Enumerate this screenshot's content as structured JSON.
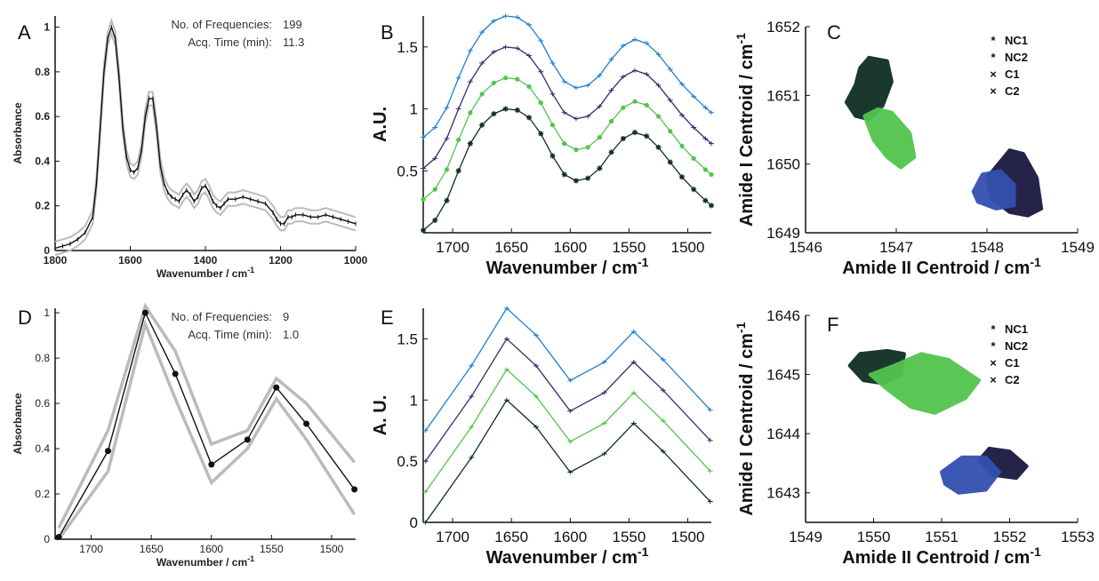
{
  "chart_data": [
    {
      "panel_label": "A",
      "type": "line",
      "xlabel": "Wavenumber / cm",
      "ylabel": "Absorbance",
      "x_exponent": "-1",
      "xlim": [
        1800,
        1000
      ],
      "ylim": [
        0,
        1.05
      ],
      "xticks": [
        "1800",
        "1600",
        "1400",
        "1200",
        "1000"
      ],
      "yticks": [
        "0",
        "0.2",
        "0.4",
        "0.6",
        "0.8",
        "1"
      ],
      "annotation": [
        {
          "label": "No. of Frequencies:",
          "value": "199"
        },
        {
          "label": "Acq. Time (min):",
          "value": "11.3"
        }
      ],
      "series": [
        {
          "color": "#111111",
          "band_color": "#bbbbbb",
          "x": [
            1800,
            1780,
            1760,
            1740,
            1720,
            1700,
            1690,
            1680,
            1670,
            1660,
            1650,
            1640,
            1630,
            1620,
            1610,
            1600,
            1590,
            1580,
            1570,
            1560,
            1550,
            1540,
            1530,
            1520,
            1510,
            1500,
            1490,
            1480,
            1470,
            1460,
            1450,
            1440,
            1430,
            1420,
            1410,
            1400,
            1390,
            1380,
            1370,
            1360,
            1350,
            1340,
            1320,
            1300,
            1280,
            1260,
            1240,
            1220,
            1210,
            1200,
            1190,
            1180,
            1170,
            1160,
            1140,
            1120,
            1100,
            1080,
            1060,
            1040,
            1020,
            1000
          ],
          "y": [
            0.01,
            0.02,
            0.03,
            0.05,
            0.08,
            0.15,
            0.3,
            0.55,
            0.8,
            0.95,
            1.0,
            0.95,
            0.78,
            0.55,
            0.42,
            0.36,
            0.35,
            0.37,
            0.45,
            0.6,
            0.68,
            0.68,
            0.55,
            0.38,
            0.3,
            0.26,
            0.24,
            0.23,
            0.22,
            0.25,
            0.27,
            0.25,
            0.22,
            0.24,
            0.28,
            0.29,
            0.26,
            0.22,
            0.2,
            0.19,
            0.21,
            0.23,
            0.23,
            0.24,
            0.23,
            0.22,
            0.21,
            0.17,
            0.14,
            0.12,
            0.12,
            0.15,
            0.15,
            0.16,
            0.16,
            0.15,
            0.15,
            0.16,
            0.15,
            0.14,
            0.13,
            0.12
          ],
          "band": 0.03
        }
      ]
    },
    {
      "panel_label": "B",
      "type": "line",
      "xlabel": "Wavenumber / cm",
      "ylabel": "A.U.",
      "x_exponent": "-1",
      "xlim": [
        1725,
        1480
      ],
      "ylim": [
        0,
        1.75
      ],
      "xticks": [
        "1700",
        "1650",
        "1600",
        "1550",
        "1500"
      ],
      "yticks": [
        "0.5",
        "1",
        "1.5"
      ],
      "x": [
        1725,
        1715,
        1705,
        1695,
        1685,
        1675,
        1665,
        1655,
        1645,
        1635,
        1625,
        1615,
        1605,
        1595,
        1585,
        1575,
        1565,
        1555,
        1545,
        1535,
        1525,
        1515,
        1505,
        1495,
        1485,
        1480
      ],
      "base": [
        0.02,
        0.1,
        0.26,
        0.5,
        0.72,
        0.87,
        0.96,
        1.0,
        0.99,
        0.93,
        0.8,
        0.62,
        0.47,
        0.42,
        0.44,
        0.52,
        0.65,
        0.76,
        0.81,
        0.78,
        0.69,
        0.57,
        0.45,
        0.35,
        0.26,
        0.22
      ],
      "series": [
        {
          "color": "#0f2e22",
          "offset": 0,
          "marker": "star"
        },
        {
          "color": "#52c44e",
          "offset": 0.25,
          "marker": "dot"
        },
        {
          "color": "#352d6f",
          "offset": 0.5,
          "marker": "tick"
        },
        {
          "color": "#1f7fce",
          "offset": 0.75,
          "marker": "tick"
        }
      ]
    },
    {
      "panel_label": "C",
      "type": "scatter",
      "xlabel": "Amide II Centroid / cm",
      "ylabel": "Amide I Centroid / cm",
      "exponent": "-1",
      "xlim": [
        1546,
        1549
      ],
      "ylim": [
        1649,
        1652
      ],
      "xticks": [
        "1546",
        "1547",
        "1548",
        "1549"
      ],
      "yticks": [
        "1649",
        "1650",
        "1651",
        "1652"
      ],
      "legend_position": "top-right",
      "legend": [
        {
          "label": "NC1",
          "color": "#0f2e22",
          "marker": "*"
        },
        {
          "label": "NC2",
          "color": "#52c44e",
          "marker": "*"
        },
        {
          "label": "C1",
          "color": "#1a1840",
          "marker": "×"
        },
        {
          "label": "C2",
          "color": "#3350b0",
          "marker": "×"
        }
      ],
      "clusters": [
        {
          "name": "NC1",
          "color": "#0f2e22",
          "polygon": [
            [
              1546.55,
              1651.15
            ],
            [
              1546.6,
              1651.4
            ],
            [
              1546.7,
              1651.55
            ],
            [
              1546.9,
              1651.5
            ],
            [
              1546.95,
              1651.2
            ],
            [
              1546.85,
              1650.85
            ],
            [
              1546.7,
              1650.65
            ],
            [
              1546.55,
              1650.7
            ],
            [
              1546.45,
              1650.9
            ]
          ]
        },
        {
          "name": "NC2",
          "color": "#52c44e",
          "polygon": [
            [
              1546.65,
              1650.7
            ],
            [
              1546.8,
              1650.8
            ],
            [
              1546.95,
              1650.75
            ],
            [
              1547.15,
              1650.45
            ],
            [
              1547.2,
              1650.1
            ],
            [
              1547.05,
              1649.95
            ],
            [
              1546.9,
              1650.1
            ],
            [
              1546.75,
              1650.35
            ]
          ]
        },
        {
          "name": "C1",
          "color": "#1a1840",
          "polygon": [
            [
              1548.0,
              1649.8
            ],
            [
              1548.25,
              1650.2
            ],
            [
              1548.4,
              1650.15
            ],
            [
              1548.55,
              1649.8
            ],
            [
              1548.6,
              1649.35
            ],
            [
              1548.45,
              1649.25
            ],
            [
              1548.25,
              1649.3
            ],
            [
              1548.05,
              1649.5
            ]
          ]
        },
        {
          "name": "C2",
          "color": "#3350b0",
          "polygon": [
            [
              1547.85,
              1649.6
            ],
            [
              1547.95,
              1649.85
            ],
            [
              1548.15,
              1649.9
            ],
            [
              1548.3,
              1649.7
            ],
            [
              1548.3,
              1649.4
            ],
            [
              1548.1,
              1649.35
            ],
            [
              1547.9,
              1649.45
            ]
          ]
        }
      ]
    },
    {
      "panel_label": "D",
      "type": "line",
      "xlabel": "Wavenumber / cm",
      "ylabel": "Absorbance",
      "x_exponent": "-1",
      "xlim": [
        1730,
        1480
      ],
      "ylim": [
        0,
        1.02
      ],
      "xticks": [
        "1700",
        "1650",
        "1600",
        "1550",
        "1500"
      ],
      "yticks": [
        "0",
        "0.2",
        "0.4",
        "0.6",
        "0.8",
        "1"
      ],
      "annotation": [
        {
          "label": "No. of Frequencies:",
          "value": "9"
        },
        {
          "label": "Acq. Time (min):",
          "value": "1.0"
        }
      ],
      "series": [
        {
          "color": "#111111",
          "band_color": "#bbbbbb",
          "x": [
            1727,
            1686,
            1655,
            1630,
            1600,
            1570,
            1546,
            1521,
            1481
          ],
          "y": [
            0.01,
            0.39,
            1.0,
            0.73,
            0.33,
            0.44,
            0.67,
            0.51,
            0.22
          ],
          "upper": [
            0.05,
            0.48,
            1.03,
            0.83,
            0.42,
            0.48,
            0.71,
            0.6,
            0.34
          ],
          "lower": [
            0.0,
            0.3,
            0.95,
            0.62,
            0.25,
            0.4,
            0.62,
            0.44,
            0.11
          ]
        }
      ]
    },
    {
      "panel_label": "E",
      "type": "line",
      "xlabel": "Wavenumber / cm",
      "ylabel": "A. U.",
      "x_exponent": "-1",
      "xlim": [
        1725,
        1480
      ],
      "ylim": [
        0,
        1.75
      ],
      "xticks": [
        "1700",
        "1650",
        "1600",
        "1550",
        "1500"
      ],
      "yticks": [
        "0",
        "0.5",
        "1",
        "1.5"
      ],
      "x": [
        1723,
        1684,
        1654,
        1629,
        1600,
        1571,
        1546,
        1521,
        1481
      ],
      "base": [
        0.0,
        0.53,
        1.0,
        0.78,
        0.41,
        0.56,
        0.81,
        0.58,
        0.17
      ],
      "series": [
        {
          "color": "#0f2e22",
          "offset": 0
        },
        {
          "color": "#52c44e",
          "offset": 0.25
        },
        {
          "color": "#352d6f",
          "offset": 0.5
        },
        {
          "color": "#1f7fce",
          "offset": 0.75
        }
      ]
    },
    {
      "panel_label": "F",
      "type": "scatter",
      "xlabel": "Amide II Centroid / cm",
      "ylabel": "Amide I Centroid / cm",
      "exponent": "-1",
      "xlim": [
        1549,
        1553
      ],
      "ylim": [
        1642.5,
        1646
      ],
      "xticks": [
        "1549",
        "1550",
        "1551",
        "1552",
        "1553"
      ],
      "yticks": [
        "1643",
        "1644",
        "1645",
        "1646"
      ],
      "legend_position": "top-right",
      "legend": [
        {
          "label": "NC1",
          "color": "#0f2e22",
          "marker": "*"
        },
        {
          "label": "NC2",
          "color": "#52c44e",
          "marker": "*"
        },
        {
          "label": "C1",
          "color": "#1a1840",
          "marker": "×"
        },
        {
          "label": "C2",
          "color": "#3350b0",
          "marker": "×"
        }
      ],
      "clusters": [
        {
          "name": "NC1",
          "color": "#0f2e22",
          "polygon": [
            [
              1549.65,
              1645.15
            ],
            [
              1549.8,
              1645.35
            ],
            [
              1550.2,
              1645.4
            ],
            [
              1550.45,
              1645.35
            ],
            [
              1550.4,
              1645.0
            ],
            [
              1550.15,
              1644.85
            ],
            [
              1549.85,
              1644.9
            ]
          ]
        },
        {
          "name": "NC2",
          "color": "#52c44e",
          "polygon": [
            [
              1549.95,
              1645.0
            ],
            [
              1550.3,
              1645.15
            ],
            [
              1550.7,
              1645.35
            ],
            [
              1551.1,
              1645.25
            ],
            [
              1551.55,
              1644.9
            ],
            [
              1551.35,
              1644.6
            ],
            [
              1550.9,
              1644.35
            ],
            [
              1550.55,
              1644.45
            ],
            [
              1550.2,
              1644.75
            ]
          ]
        },
        {
          "name": "C1",
          "color": "#1a1840",
          "polygon": [
            [
              1551.55,
              1643.55
            ],
            [
              1551.7,
              1643.75
            ],
            [
              1552.0,
              1643.7
            ],
            [
              1552.25,
              1643.45
            ],
            [
              1552.1,
              1643.25
            ],
            [
              1551.75,
              1643.3
            ]
          ]
        },
        {
          "name": "C2",
          "color": "#3350b0",
          "polygon": [
            [
              1551.0,
              1643.35
            ],
            [
              1551.3,
              1643.6
            ],
            [
              1551.65,
              1643.6
            ],
            [
              1551.85,
              1643.35
            ],
            [
              1551.65,
              1643.05
            ],
            [
              1551.25,
              1643.0
            ],
            [
              1551.05,
              1643.15
            ]
          ]
        }
      ]
    }
  ]
}
